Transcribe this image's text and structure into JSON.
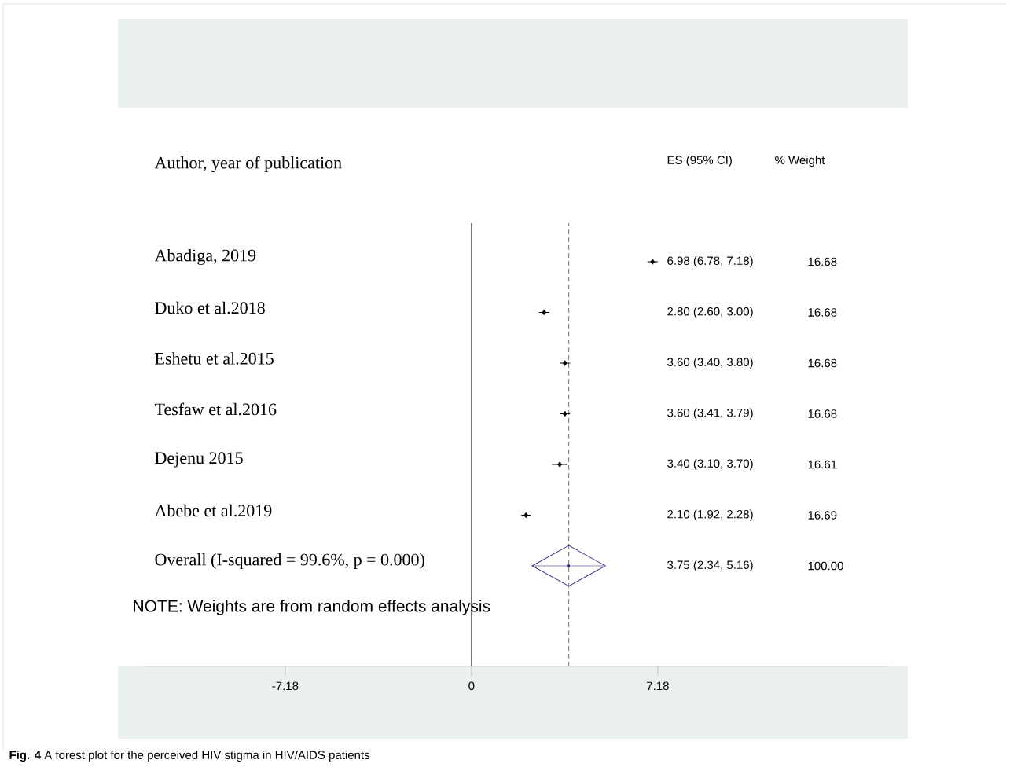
{
  "chart_data": {
    "type": "scatter",
    "title": "**Fig. 4** A forest plot for the perceived HIV stigma in HIV/AIDS patients",
    "ylabel": "Author, year of publication",
    "categories": [
      "Abadiga, 2019",
      "Duko et al.2018",
      "Eshetu et al.2015",
      "Tesfaw et al.2016",
      "Dejenu 2015",
      "Abebe et al.2019",
      "Overall (I-squared = 99.6%, p = 0.000)"
    ],
    "orientation": "horizontal",
    "marker": "diamond",
    "series": [
      {
        "color": "#000000",
        "values": [
          6.98,
          2.8,
          3.6,
          3.6,
          3.4,
          2.1,
          null
        ],
        "errors": [
          [
            6.78,
            7.18
          ],
          [
            2.6,
            3.0
          ],
          [
            3.4,
            3.8
          ],
          [
            3.41,
            3.79
          ],
          [
            3.1,
            3.7
          ],
          [
            1.92,
            2.28
          ],
          null
        ]
      },
      {
        "color": "#3a3a8c",
        "values": [
          null,
          null,
          null,
          null,
          null,
          null,
          3.75
        ],
        "errors": [
          null,
          null,
          null,
          null,
          null,
          null,
          [
            2.34,
            5.16
          ]
        ]
      }
    ],
    "xlim": [
      -12.63,
      16.06
    ],
    "xticks": [
      -7.18,
      0,
      7.18
    ],
    "ref_lines": [
      {
        "axis": "x",
        "value": 0,
        "color": "#000000",
        "line_style": "solid"
      },
      {
        "axis": "x",
        "value": 3.75,
        "color": "#a0405a",
        "line_style": "dashed"
      }
    ],
    "annotations": [
      "ES (95% CI)",
      "% Weight",
      "6.98 (6.78, 7.18)",
      "2.80 (2.60, 3.00)",
      "3.60 (3.40, 3.80)",
      "3.60 (3.41, 3.79)",
      "3.40 (3.10, 3.70)",
      "2.10 (1.92, 2.28)",
      "3.75 (2.34, 5.16)",
      "16.68",
      "16.68",
      "16.68",
      "16.68",
      "16.61",
      "16.69",
      "100.00",
      "NOTE: Weights are from random effects analysis"
    ]
  }
}
